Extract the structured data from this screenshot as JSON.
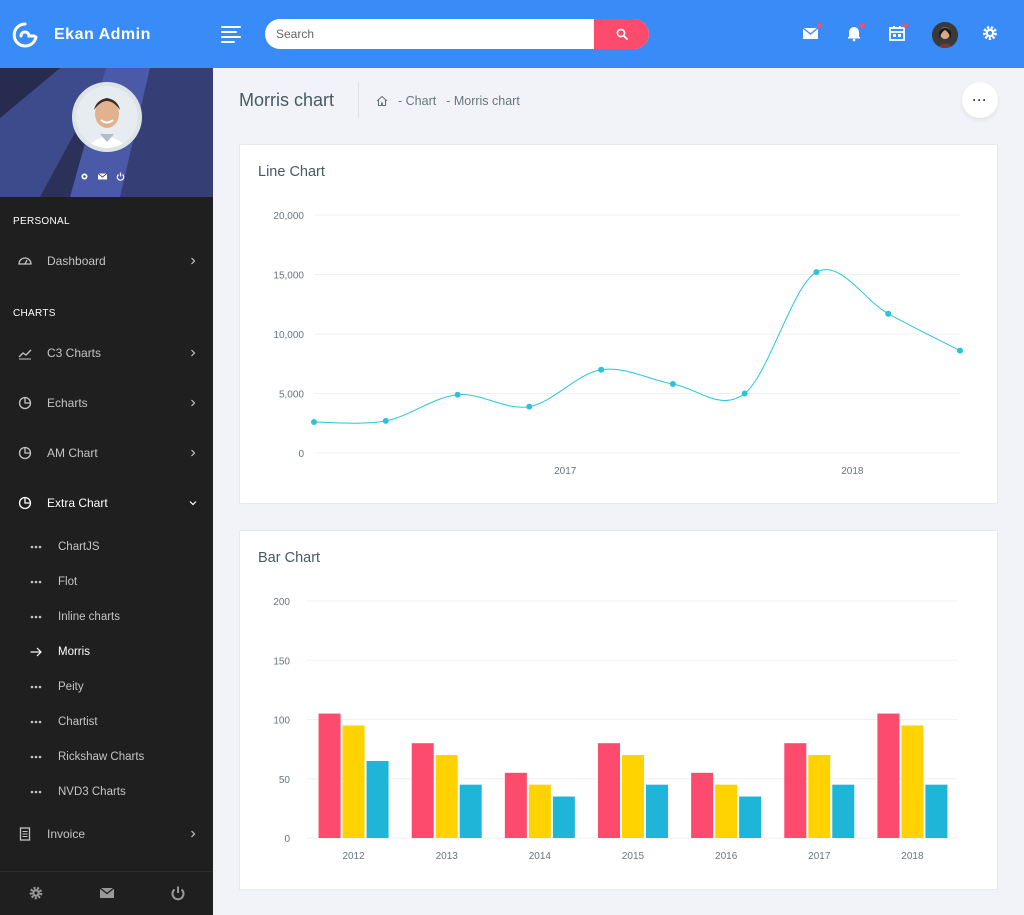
{
  "header": {
    "brand_name": "Ekan Admin",
    "search_placeholder": "Search",
    "accent_color": "#398bf7",
    "search_button_color": "#fc4b6c"
  },
  "sidebar": {
    "sections": {
      "personal": "PERSONAL",
      "charts": "CHARTS"
    },
    "items": [
      {
        "label": "Dashboard",
        "icon": "gauge-icon"
      },
      {
        "label": "C3 Charts",
        "icon": "trending-icon"
      },
      {
        "label": "Echarts",
        "icon": "pie-icon"
      },
      {
        "label": "AM Chart",
        "icon": "pie-icon"
      },
      {
        "label": "Extra Chart",
        "icon": "pie-icon"
      },
      {
        "label": "Invoice",
        "icon": "document-icon"
      }
    ],
    "subitems": [
      {
        "label": "ChartJS"
      },
      {
        "label": "Flot"
      },
      {
        "label": "Inline charts"
      },
      {
        "label": "Morris",
        "active": true
      },
      {
        "label": "Peity"
      },
      {
        "label": "Chartist"
      },
      {
        "label": "Rickshaw Charts"
      },
      {
        "label": "NVD3 Charts"
      }
    ]
  },
  "page": {
    "title": "Morris chart",
    "breadcrumbs": [
      "- Chart",
      "- Morris chart"
    ]
  },
  "line_card": {
    "title": "Line Chart"
  },
  "bar_card": {
    "title": "Bar Chart"
  },
  "chart_data": [
    {
      "type": "line",
      "title": "Line Chart",
      "ylim": [
        0,
        20000
      ],
      "yticks": [
        0,
        5000,
        10000,
        15000,
        20000
      ],
      "ytick_labels": [
        "0",
        "5,000",
        "10,000",
        "15,000",
        "20,000"
      ],
      "xtick_labels": [
        "2017",
        "2018"
      ],
      "color": "#26c6da",
      "values": [
        2600,
        2700,
        4900,
        3900,
        7000,
        5800,
        5000,
        15200,
        11700,
        8600
      ]
    },
    {
      "type": "bar",
      "title": "Bar Chart",
      "categories": [
        "2012",
        "2013",
        "2014",
        "2015",
        "2016",
        "2017",
        "2018"
      ],
      "ylim": [
        0,
        200
      ],
      "yticks": [
        0,
        50,
        100,
        150,
        200
      ],
      "series": [
        {
          "color": "#fc4b6c",
          "values": [
            105,
            80,
            55,
            80,
            55,
            80,
            105
          ]
        },
        {
          "color": "#ffd200",
          "values": [
            95,
            70,
            45,
            70,
            45,
            70,
            95
          ]
        },
        {
          "color": "#1fb5d9",
          "values": [
            65,
            45,
            35,
            45,
            35,
            45,
            45
          ]
        }
      ]
    }
  ]
}
